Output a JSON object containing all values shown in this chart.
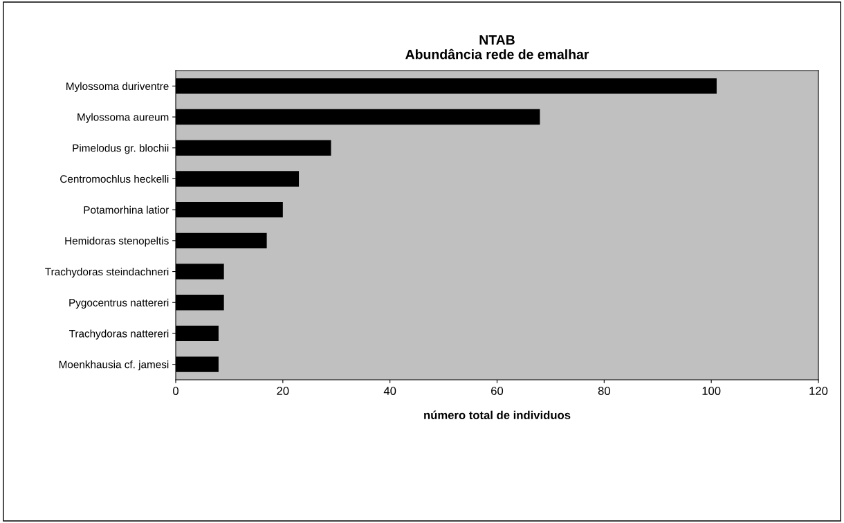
{
  "chart_data": {
    "type": "bar",
    "orientation": "horizontal",
    "title": "NTAB\nAbundância rede de emalhar",
    "xlabel": "número total de individuos",
    "categories": [
      "Mylossoma duriventre",
      "Mylossoma aureum",
      "Pimelodus gr. blochii",
      "Centromochlus heckelli",
      "Potamorhina latior",
      "Hemidoras stenopeltis",
      "Trachydoras steindachneri",
      "Pygocentrus nattereri",
      "Trachydoras nattereri",
      "Moenkhausia cf. jamesi"
    ],
    "values": [
      101,
      68,
      29,
      23,
      20,
      17,
      9,
      9,
      8,
      8
    ],
    "color": "#000000",
    "xlim": [
      0,
      120
    ],
    "xticks": [
      0,
      20,
      40,
      60,
      80,
      100,
      120
    ],
    "grid": false,
    "legend": false
  }
}
